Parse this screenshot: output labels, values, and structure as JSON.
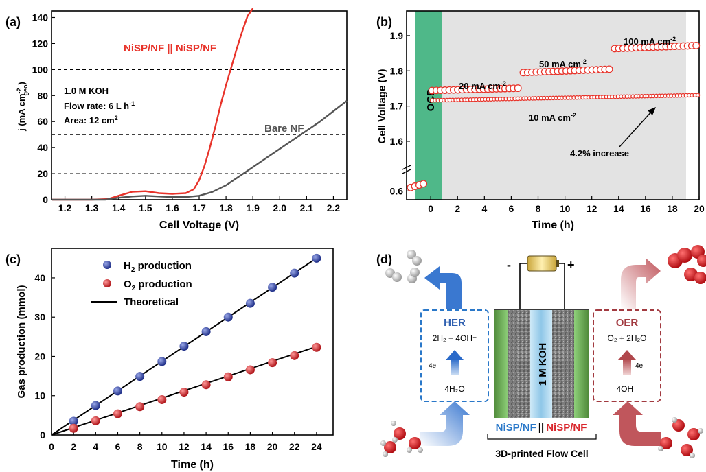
{
  "panel_labels": {
    "a": "(a)",
    "b": "(b)",
    "c": "(c)",
    "d": "(d)"
  },
  "chart_data": [
    {
      "panel": "(a)",
      "type": "line",
      "xlabel": "Cell Voltage (V)",
      "ylabel_main": "j (mA cm",
      "ylabel_sup": "-2",
      "ylabel_sub": "geo",
      "ylabel_close": ")",
      "xlim": [
        1.15,
        2.25
      ],
      "ylim": [
        0,
        145
      ],
      "xticks": [
        "1.2",
        "1.3",
        "1.4",
        "1.5",
        "1.6",
        "1.7",
        "1.8",
        "1.9",
        "2.0",
        "2.1",
        "2.2"
      ],
      "yticks": [
        "0",
        "20",
        "40",
        "60",
        "80",
        "100",
        "120",
        "140"
      ],
      "reference_lines": [
        20,
        50,
        100
      ],
      "annotations": [
        "1.0 M KOH",
        "Flow rate: 6 L h",
        "-1",
        "Area: 12 cm",
        "2"
      ],
      "series": [
        {
          "name": "NiSP/NF || NiSP/NF",
          "color": "#e8332a",
          "x": [
            1.15,
            1.3,
            1.36,
            1.4,
            1.45,
            1.5,
            1.55,
            1.6,
            1.65,
            1.68,
            1.7,
            1.72,
            1.74,
            1.76,
            1.78,
            1.8,
            1.82,
            1.84,
            1.86,
            1.88,
            1.9
          ],
          "y": [
            0,
            0,
            0.5,
            3,
            6,
            6.5,
            5,
            4.5,
            5,
            8,
            15,
            26,
            40,
            56,
            73,
            88,
            102,
            116,
            129,
            141,
            147
          ]
        },
        {
          "name": "Bare NF",
          "color": "#555555",
          "x": [
            1.15,
            1.35,
            1.4,
            1.45,
            1.5,
            1.55,
            1.6,
            1.65,
            1.7,
            1.75,
            1.8,
            1.85,
            1.9,
            1.95,
            2.0,
            2.05,
            2.1,
            2.15,
            2.2,
            2.25
          ],
          "y": [
            0,
            0,
            1.5,
            2.5,
            3,
            2.5,
            2,
            2,
            3,
            6,
            11,
            18,
            25,
            32,
            39,
            46,
            53,
            60,
            68,
            76
          ]
        }
      ]
    },
    {
      "panel": "(b)",
      "type": "scatter",
      "xlabel": "Time (h)",
      "ylabel": "Cell Voltage (V)",
      "xlim": [
        -1.8,
        20
      ],
      "ylim": [
        0.57,
        1.97
      ],
      "axis_break": {
        "lower_range": [
          0.57,
          0.66
        ],
        "upper_range": [
          1.52,
          1.97
        ]
      },
      "xticks": [
        "0",
        "2",
        "4",
        "6",
        "8",
        "10",
        "12",
        "14",
        "16",
        "18",
        "20"
      ],
      "yticks": [
        "0.6",
        "1.6",
        "1.7",
        "1.8",
        "1.9"
      ],
      "ocp_label": "OCP",
      "ocp_color": "#4fb889",
      "annotations": {
        "arrow_note": "4.2% increase",
        "labels": [
          {
            "text": "20 mA cm",
            "sup": "-2"
          },
          {
            "text": "50 mA cm",
            "sup": "-2"
          },
          {
            "text": "100 mA cm",
            "sup": "-2"
          },
          {
            "text": "10 mA cm",
            "sup": "-2"
          }
        ]
      },
      "series": [
        {
          "name": "OCP",
          "x_range": [
            -1.5,
            -0.3
          ],
          "y_start": 0.612,
          "y_end": 0.628
        },
        {
          "name": "10 mA cm-2",
          "x_range": [
            0.1,
            19.9
          ],
          "y_start": 1.716,
          "y_end": 1.731
        },
        {
          "name": "20 mA cm-2",
          "x_range": [
            0.1,
            6.8
          ],
          "y_start": 1.744,
          "y_end": 1.751
        },
        {
          "name": "50 mA cm-2",
          "x_range": [
            6.9,
            13.6
          ],
          "y_start": 1.795,
          "y_end": 1.805
        },
        {
          "name": "100 mA cm-2",
          "x_range": [
            13.7,
            19.9
          ],
          "y_start": 1.863,
          "y_end": 1.872
        }
      ]
    },
    {
      "panel": "(c)",
      "type": "scatter",
      "xlabel": "Time (h)",
      "ylabel": "Gas production (mmol)",
      "xlim": [
        0,
        25.5
      ],
      "ylim": [
        0,
        47.5
      ],
      "xticks": [
        "0",
        "2",
        "4",
        "6",
        "8",
        "10",
        "12",
        "14",
        "16",
        "18",
        "20",
        "22",
        "24"
      ],
      "yticks": [
        "0",
        "10",
        "20",
        "30",
        "40"
      ],
      "legend": [
        "H",
        "2",
        " production",
        "O",
        "2",
        " production",
        "Theoretical"
      ],
      "series": [
        {
          "name": "H2 production",
          "color": "#3b4fa8",
          "x": [
            2,
            4,
            6,
            8,
            10,
            12,
            14,
            16,
            18,
            20,
            22,
            24
          ],
          "y": [
            3.5,
            7.5,
            11.2,
            14.9,
            18.7,
            22.6,
            26.3,
            30.0,
            33.5,
            37.6,
            41.2,
            45.0
          ]
        },
        {
          "name": "O2 production",
          "color": "#e33b3b",
          "x": [
            2,
            4,
            6,
            8,
            10,
            12,
            14,
            16,
            18,
            20,
            22,
            24
          ],
          "y": [
            1.7,
            3.6,
            5.4,
            7.2,
            9.0,
            10.9,
            12.8,
            14.8,
            16.6,
            18.4,
            20.2,
            22.3
          ]
        },
        {
          "name": "Theoretical",
          "color": "#000000",
          "x": [
            0,
            24,
            0,
            24
          ],
          "y": [
            0,
            45,
            0,
            22.5
          ]
        }
      ]
    }
  ],
  "diagram": {
    "her_title": "HER",
    "her_eq": "2H₂ + 4OH⁻",
    "her_e": "4e⁻",
    "her_reactant": "4H₂O",
    "oer_title": "OER",
    "oer_eq": "O₂ + 2H₂O",
    "oer_e": "4e⁻",
    "oer_reactant": "4OH⁻",
    "electrolyte": "1 M KOH",
    "minus": "-",
    "plus": "+",
    "left_electrode": "NiSP/NF",
    "separator": "||",
    "right_electrode": "NiSP/NF",
    "caption": "3D-printed Flow Cell"
  }
}
